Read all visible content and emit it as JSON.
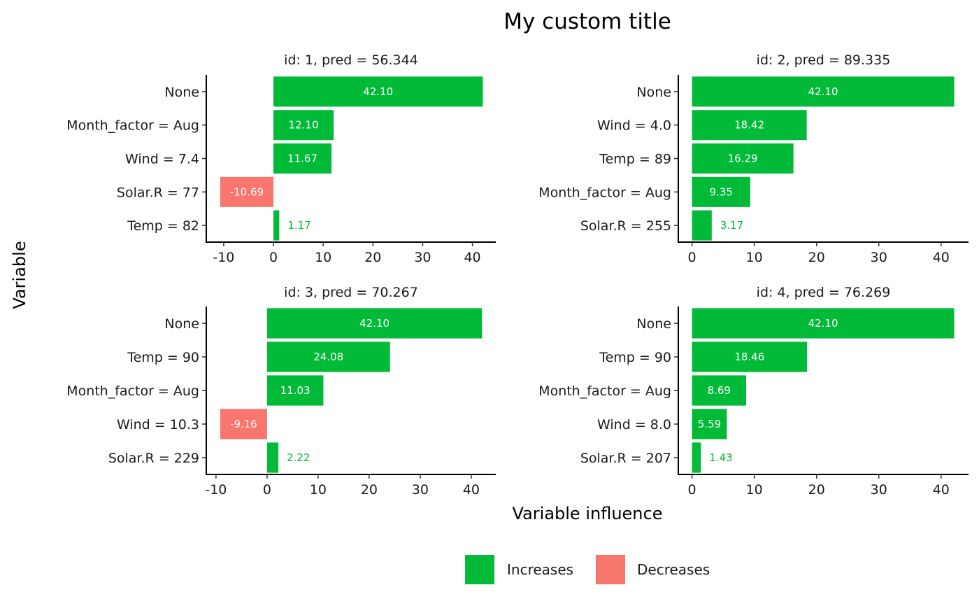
{
  "chart_data": {
    "type": "bar",
    "orientation": "horizontal",
    "title": "My custom title",
    "xlabel": "Variable influence",
    "ylabel": "Variable",
    "legend": {
      "placement": "bottom",
      "entries": [
        {
          "label": "Increases",
          "color": "#00BA38"
        },
        {
          "label": "Decreases",
          "color": "#F8766D"
        }
      ]
    },
    "panels": [
      {
        "title": "id: 1, pred =  56.344",
        "xticks": [
          "-10",
          "0",
          "10",
          "20",
          "30",
          "40"
        ],
        "xtick_values": [
          -10,
          0,
          10,
          20,
          30,
          40
        ],
        "xlim": [
          -13.5,
          44.7
        ],
        "categories": [
          "None",
          "Month_factor = Aug",
          "Wind = 7.4",
          "Solar.R = 77",
          "Temp = 82"
        ],
        "values": [
          42.1,
          12.1,
          11.67,
          -10.69,
          1.17
        ],
        "labels": [
          "42.10",
          "12.10",
          "11.67",
          "-10.69",
          "1.17"
        ]
      },
      {
        "title": "id: 2, pred =  89.335",
        "xticks": [
          "0",
          "10",
          "20",
          "30",
          "40"
        ],
        "xtick_values": [
          0,
          10,
          20,
          30,
          40
        ],
        "xlim": [
          -2.2,
          44.4
        ],
        "categories": [
          "None",
          "Wind = 4.0",
          "Temp = 89",
          "Month_factor = Aug",
          "Solar.R = 255"
        ],
        "values": [
          42.1,
          18.42,
          16.29,
          9.35,
          3.17
        ],
        "labels": [
          "42.10",
          "18.42",
          "16.29",
          "9.35",
          "3.17"
        ]
      },
      {
        "title": "id: 3, pred =  70.267",
        "xticks": [
          "-10",
          "0",
          "10",
          "20",
          "30",
          "40"
        ],
        "xtick_values": [
          -10,
          0,
          10,
          20,
          30,
          40
        ],
        "xlim": [
          -11.9,
          44.8
        ],
        "categories": [
          "None",
          "Temp = 90",
          "Month_factor = Aug",
          "Wind = 10.3",
          "Solar.R = 229"
        ],
        "values": [
          42.1,
          24.08,
          11.03,
          -9.16,
          2.22
        ],
        "labels": [
          "42.10",
          "24.08",
          "11.03",
          "-9.16",
          "2.22"
        ]
      },
      {
        "title": "id: 4, pred =  76.269",
        "xticks": [
          "0",
          "10",
          "20",
          "30",
          "40"
        ],
        "xtick_values": [
          0,
          10,
          20,
          30,
          40
        ],
        "xlim": [
          -2.2,
          44.4
        ],
        "categories": [
          "None",
          "Temp = 90",
          "Month_factor = Aug",
          "Wind = 8.0",
          "Solar.R = 207"
        ],
        "values": [
          42.1,
          18.46,
          8.69,
          5.59,
          1.43
        ],
        "labels": [
          "42.10",
          "18.46",
          "8.69",
          "5.59",
          "1.43"
        ]
      }
    ]
  }
}
